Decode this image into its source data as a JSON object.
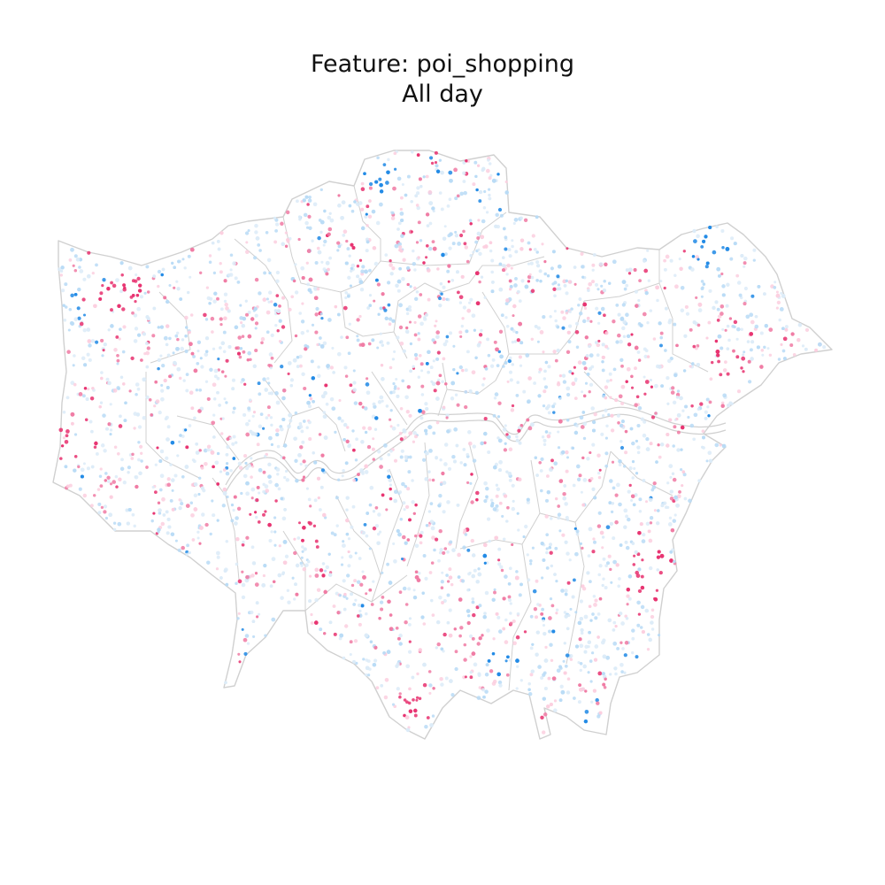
{
  "figure": {
    "title_line1": "Feature: poi_shopping",
    "title_line2": "All day"
  },
  "map_style": {
    "boundary_color": "#d0d0d0",
    "background_color": "#ffffff",
    "palette": {
      "strong_pink": "#e8306e",
      "mid_pink": "#f07aa3",
      "light_pink": "#fbcfdf",
      "pale_blue": "#dcebf8",
      "light_blue": "#b9dbf6",
      "strong_blue": "#1e88e5"
    }
  }
}
